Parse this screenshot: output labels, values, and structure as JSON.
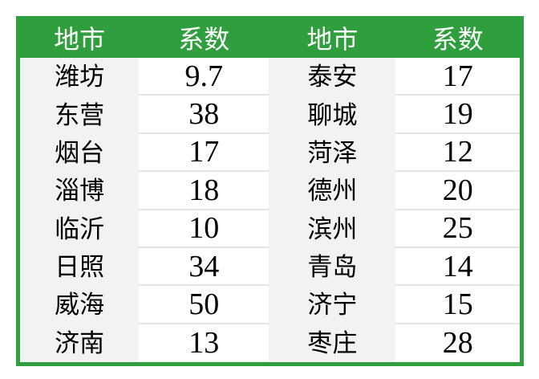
{
  "chart_data": {
    "type": "table",
    "columns": [
      "地市",
      "系数",
      "地市",
      "系数"
    ],
    "rows": [
      [
        "潍坊",
        "9.7",
        "泰安",
        "17"
      ],
      [
        "东营",
        "38",
        "聊城",
        "19"
      ],
      [
        "烟台",
        "17",
        "菏泽",
        "12"
      ],
      [
        "淄博",
        "18",
        "德州",
        "20"
      ],
      [
        "临沂",
        "10",
        "滨州",
        "25"
      ],
      [
        "日照",
        "34",
        "青岛",
        "14"
      ],
      [
        "威海",
        "50",
        "济宁",
        "15"
      ],
      [
        "济南",
        "13",
        "枣庄",
        "28"
      ]
    ],
    "records": [
      {
        "city": "潍坊",
        "coefficient": 9.7
      },
      {
        "city": "东营",
        "coefficient": 38
      },
      {
        "city": "烟台",
        "coefficient": 17
      },
      {
        "city": "淄博",
        "coefficient": 18
      },
      {
        "city": "临沂",
        "coefficient": 10
      },
      {
        "city": "日照",
        "coefficient": 34
      },
      {
        "city": "威海",
        "coefficient": 50
      },
      {
        "city": "济南",
        "coefficient": 13
      },
      {
        "city": "泰安",
        "coefficient": 17
      },
      {
        "city": "聊城",
        "coefficient": 19
      },
      {
        "city": "菏泽",
        "coefficient": 12
      },
      {
        "city": "德州",
        "coefficient": 20
      },
      {
        "city": "滨州",
        "coefficient": 25
      },
      {
        "city": "青岛",
        "coefficient": 14
      },
      {
        "city": "济宁",
        "coefficient": 15
      },
      {
        "city": "枣庄",
        "coefficient": 28
      }
    ]
  },
  "style": {
    "accent_green": "#2F9E3C",
    "header_text_color": "#FFFFFF",
    "city_cell_bg": "#F2F2F2",
    "value_cell_bg": "#FFFFFF",
    "row_divider_color": "#E4E4E4",
    "text_color": "#000000"
  }
}
